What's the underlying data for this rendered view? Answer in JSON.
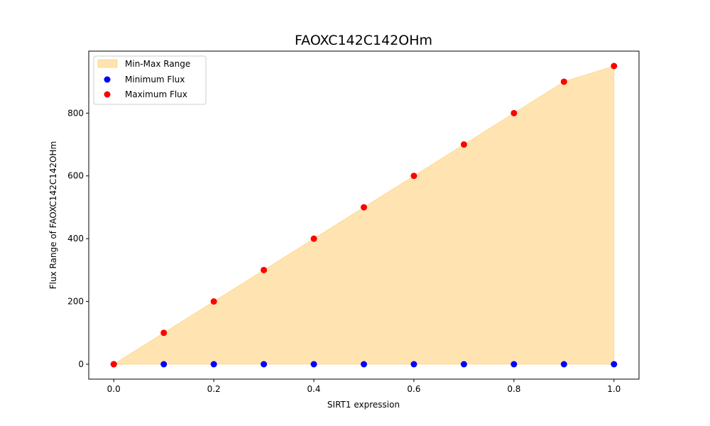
{
  "chart_data": {
    "type": "scatter",
    "title": "FAOXC142C142OHm",
    "xlabel": "SIRT1 expression",
    "ylabel": "Flux Range of FAOXC142C142OHm",
    "xlim": [
      -0.05,
      1.05
    ],
    "ylim": [
      -47.5,
      997.5
    ],
    "xticks": [
      0.0,
      0.2,
      0.4,
      0.6,
      0.8,
      1.0
    ],
    "yticks": [
      0,
      200,
      400,
      600,
      800
    ],
    "x": [
      0.0,
      0.1,
      0.2,
      0.3,
      0.4,
      0.5,
      0.6,
      0.7,
      0.8,
      0.9,
      1.0
    ],
    "series": [
      {
        "name": "Minimum Flux",
        "color": "#0000ff",
        "values": [
          0,
          0,
          0,
          0,
          0,
          0,
          0,
          0,
          0,
          0,
          0
        ]
      },
      {
        "name": "Maximum Flux",
        "color": "#ff0000",
        "values": [
          0,
          100,
          200,
          300,
          400,
          500,
          600,
          700,
          800,
          900,
          950
        ]
      }
    ],
    "range_fill": {
      "name": "Min-Max Range",
      "color": "#ffa500",
      "opacity": 0.3
    },
    "legend": {
      "position": "top-left",
      "entries": [
        "Min-Max Range",
        "Minimum Flux",
        "Maximum Flux"
      ]
    },
    "grid": false
  }
}
